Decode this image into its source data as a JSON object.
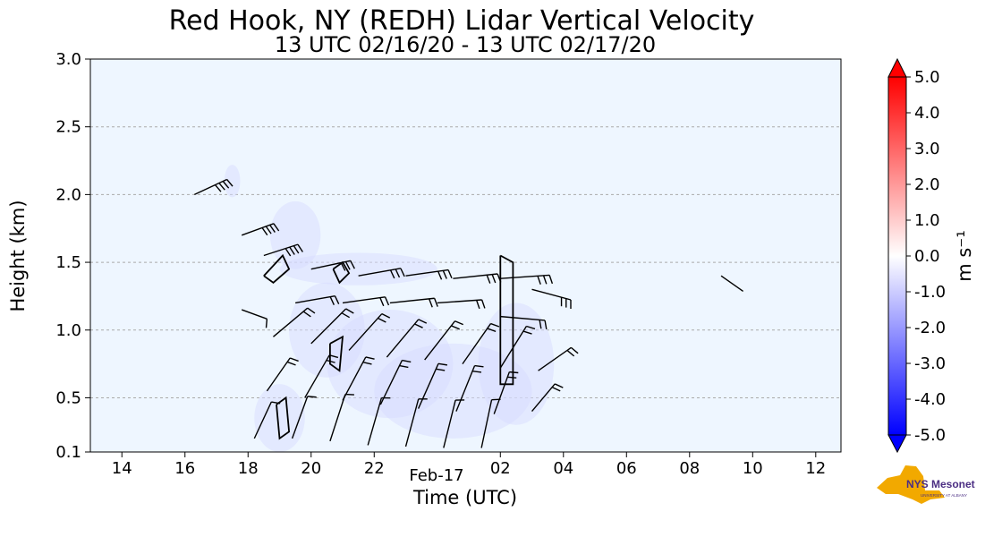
{
  "chart_data": {
    "type": "heatmap",
    "title": "Red Hook, NY (REDH) Lidar Vertical Velocity",
    "subtitle": "13 UTC 02/16/20 - 13 UTC 02/17/20",
    "xlabel": "Time (UTC)",
    "ylabel": "Height (km)",
    "x_date_label": "Feb-17",
    "x_ticks": [
      "14",
      "16",
      "18",
      "20",
      "22",
      "02",
      "04",
      "06",
      "08",
      "10",
      "12"
    ],
    "x_tick_hours": [
      14,
      16,
      18,
      20,
      22,
      26,
      28,
      30,
      32,
      34,
      36
    ],
    "xlim_hours": [
      13,
      36.8
    ],
    "y_ticks": [
      "0.1",
      "0.5",
      "1.0",
      "1.5",
      "2.0",
      "2.5",
      "3.0"
    ],
    "y_tick_values": [
      0.1,
      0.5,
      1.0,
      1.5,
      2.0,
      2.5,
      3.0
    ],
    "ylim": [
      0.1,
      3.0
    ],
    "grid": "horizontal dashed",
    "colorbar": {
      "label": "m s⁻¹",
      "ticks": [
        "5.0",
        "4.0",
        "3.0",
        "2.0",
        "1.0",
        "0.0",
        "-1.0",
        "-2.0",
        "-3.0",
        "-4.0",
        "-5.0"
      ],
      "range": [
        -5.0,
        5.0
      ],
      "colormap": "bwr",
      "low_color": "#0000ff",
      "high_color": "#ff0000"
    },
    "series": [
      {
        "values_description": "near-zero vertical velocity (pale blue) with weak negative values beneath the wind barbs",
        "data_region": {
          "time_hours": [
            16.5,
            28.5
          ],
          "height_km": [
            0.1,
            2.3
          ]
        },
        "value_range": [
          -1.0,
          0.5
        ]
      }
    ],
    "background_color": "#eef6ff"
  },
  "logo": {
    "text": "NYS Mesonet",
    "subtext": "UNIVERSITY AT ALBANY",
    "colors": {
      "state": "#f2a900",
      "text": "#4b2e83"
    }
  }
}
